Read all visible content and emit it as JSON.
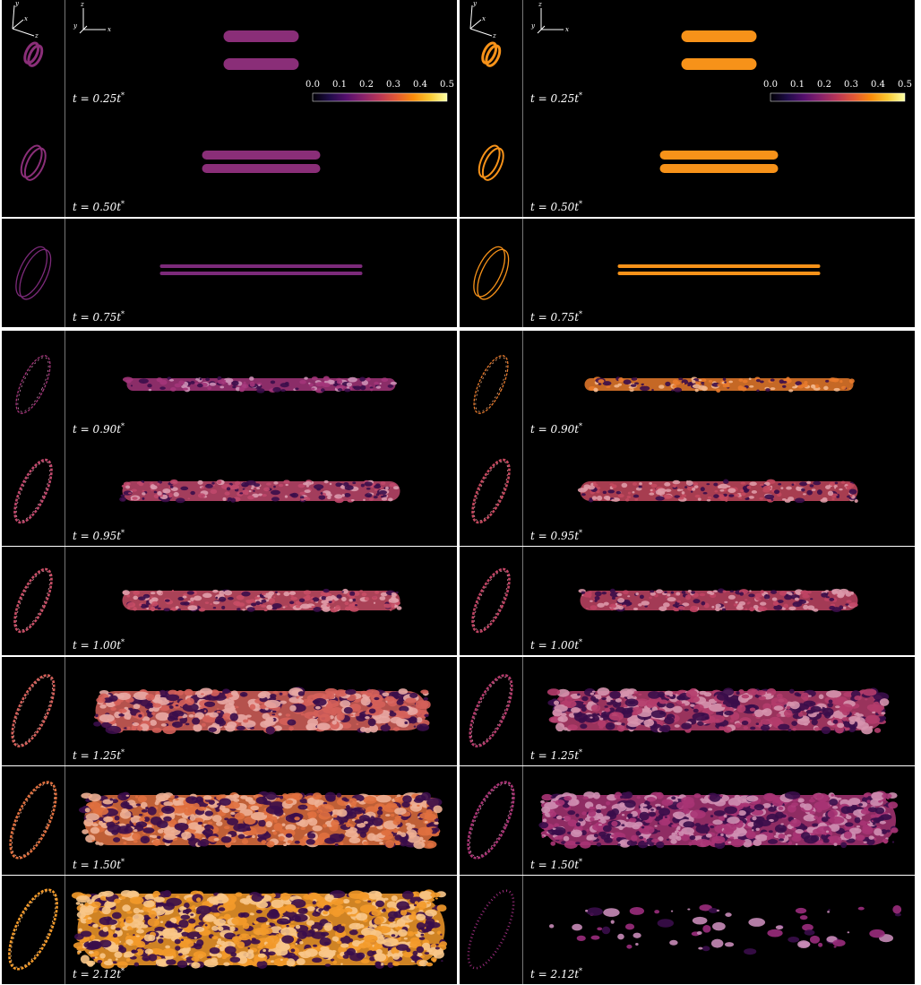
{
  "colorbar": {
    "ticks": [
      "0.0",
      "0.1",
      "0.2",
      "0.3",
      "0.4",
      "0.5"
    ],
    "colormap": [
      "#000004",
      "#1f0c48",
      "#550f6d",
      "#88226a",
      "#ba3655",
      "#e35933",
      "#f98c0a",
      "#f9c932",
      "#fcffa4"
    ]
  },
  "axes": {
    "thumb": [
      "y",
      "x",
      "z"
    ],
    "main": [
      "z",
      "y",
      "x"
    ]
  },
  "left_rows": [
    {
      "time": "t = 0.25t*",
      "stage": "twin-ring",
      "color": "#8a2e78"
    },
    {
      "time": "t = 0.50t*",
      "stage": "stretched",
      "color": "#8a2e78"
    },
    {
      "time": "t = 0.75t*",
      "stage": "thin",
      "color": "#7c2a7a"
    },
    {
      "time": "t = 0.90t*",
      "stage": "wavy",
      "color": "#a3357a"
    },
    {
      "time": "t = 0.95t*",
      "stage": "turbulent",
      "color": "#c0486c"
    },
    {
      "time": "t = 1.00t*",
      "stage": "turbulent",
      "color": "#c84e66"
    },
    {
      "time": "t = 1.25t*",
      "stage": "wide",
      "color": "#d5605a"
    },
    {
      "time": "t = 1.50t*",
      "stage": "wider",
      "color": "#e0703f"
    },
    {
      "time": "t = 2.12t*",
      "stage": "widest",
      "color": "#f39a2a"
    }
  ],
  "right_rows": [
    {
      "time": "t = 0.25t*",
      "stage": "twin-ring",
      "color": "#f79219"
    },
    {
      "time": "t = 0.50t*",
      "stage": "stretched",
      "color": "#f79219"
    },
    {
      "time": "t = 0.75t*",
      "stage": "thin",
      "color": "#f79219"
    },
    {
      "time": "t = 0.90t*",
      "stage": "wavy",
      "color": "#e87a2c"
    },
    {
      "time": "t = 0.95t*",
      "stage": "turbulent",
      "color": "#c4485e"
    },
    {
      "time": "t = 1.00t*",
      "stage": "turbulent",
      "color": "#c04464"
    },
    {
      "time": "t = 1.25t*",
      "stage": "wide",
      "color": "#b43c6c"
    },
    {
      "time": "t = 1.50t*",
      "stage": "wider",
      "color": "#a83474"
    },
    {
      "time": "t = 2.12t*",
      "stage": "sparse",
      "color": "#9a2c7c"
    }
  ]
}
